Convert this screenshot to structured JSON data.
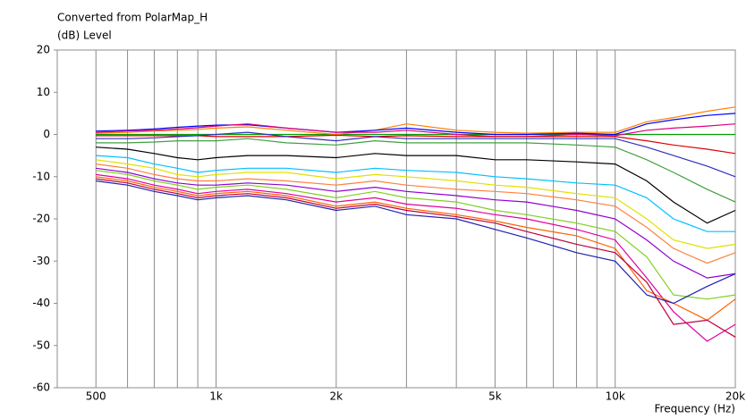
{
  "chart_data": {
    "type": "line",
    "title": "Converted from PolarMap_H",
    "y_label": "(dB)  Level",
    "x_label": "Frequency  (Hz)",
    "log_x": true,
    "grid_x": true,
    "xlim": [
      400,
      20000
    ],
    "ylim": [
      -60,
      20
    ],
    "yticks": [
      20,
      10,
      0,
      -10,
      -20,
      -30,
      -40,
      -50,
      -60
    ],
    "xticks": [
      500,
      {
        "value": 1000,
        "label": "1k"
      },
      {
        "value": 2000,
        "label": "2k"
      },
      {
        "value": 5000,
        "label": "5k"
      },
      {
        "value": 10000,
        "label": "10k"
      },
      {
        "value": 20000,
        "label": "20k"
      }
    ],
    "xminorticks": [
      600,
      700,
      800,
      900,
      3000,
      4000,
      6000,
      7000,
      8000,
      9000
    ],
    "x": [
      500,
      600,
      700,
      800,
      900,
      1000,
      1200,
      1500,
      2000,
      2500,
      3000,
      4000,
      5000,
      6000,
      8000,
      10000,
      12000,
      14000,
      17000,
      20000
    ],
    "series": [
      {
        "color": "#00a000",
        "values": [
          0,
          0,
          0,
          0,
          0,
          0,
          0,
          0,
          0,
          0,
          0,
          0,
          0,
          0,
          0,
          0,
          0,
          0,
          0,
          0
        ]
      },
      {
        "color": "#ff8000",
        "values": [
          0.3,
          0.5,
          0.8,
          1,
          1.2,
          1.5,
          1.8,
          1,
          0,
          1,
          2.5,
          1,
          0.5,
          0.3,
          0.5,
          0.5,
          3,
          4,
          5.5,
          6.5
        ]
      },
      {
        "color": "#0000ff",
        "values": [
          0.8,
          1,
          1.3,
          1.7,
          2,
          2.2,
          2.3,
          1.5,
          0.5,
          1,
          1.5,
          0.5,
          0,
          0,
          0.3,
          0,
          2.5,
          3.5,
          4.5,
          5
        ]
      },
      {
        "color": "#e0007f",
        "values": [
          0.5,
          0.8,
          1,
          1.3,
          1.6,
          2,
          2.5,
          1.5,
          0.5,
          0.5,
          1,
          0,
          -0.5,
          -0.5,
          0,
          -0.3,
          1,
          1.5,
          2,
          2.5
        ]
      },
      {
        "color": "#e00000",
        "values": [
          -0.3,
          -0.3,
          -0.3,
          -0.3,
          -0.3,
          -0.5,
          -0.5,
          -0.5,
          -0.2,
          -0.5,
          -0.3,
          -0.5,
          -0.5,
          -0.5,
          -0.5,
          -0.5,
          -1.5,
          -2.5,
          -3.5,
          -4.5
        ]
      },
      {
        "color": "#3030c0",
        "values": [
          -1,
          -1,
          -0.8,
          -0.5,
          -0.3,
          0,
          0.5,
          -0.5,
          -1.5,
          -0.5,
          -1,
          -1,
          -1,
          -1,
          -1,
          -1,
          -3,
          -5,
          -7.5,
          -10
        ]
      },
      {
        "color": "#40a040",
        "values": [
          -2,
          -2,
          -1.8,
          -1.5,
          -1.5,
          -1.5,
          -1,
          -2,
          -2.5,
          -1.5,
          -2,
          -2,
          -2,
          -2,
          -2.5,
          -3,
          -6,
          -9,
          -13,
          -16
        ]
      },
      {
        "color": "#000000",
        "values": [
          -3,
          -3.5,
          -4.5,
          -5.5,
          -6,
          -5.5,
          -5,
          -5,
          -5.5,
          -4.5,
          -5,
          -5,
          -6,
          -6,
          -6.5,
          -7,
          -11,
          -16,
          -21,
          -18
        ]
      },
      {
        "color": "#00c0ff",
        "values": [
          -5,
          -5.5,
          -7,
          -8,
          -9,
          -8.5,
          -8,
          -8,
          -9,
          -8,
          -8.5,
          -9,
          -10,
          -10.5,
          -11.5,
          -12,
          -15,
          -20,
          -23,
          -23
        ]
      },
      {
        "color": "#e0e000",
        "values": [
          -6,
          -7,
          -8,
          -9.5,
          -10,
          -9.5,
          -9,
          -9,
          -10.5,
          -9.5,
          -10,
          -11,
          -12,
          -12.5,
          -14,
          -15,
          -20,
          -25,
          -27,
          -26
        ]
      },
      {
        "color": "#ff8040",
        "values": [
          -7,
          -8,
          -9.5,
          -10.5,
          -11,
          -11,
          -10.5,
          -11,
          -12,
          -11,
          -12,
          -13,
          -13.5,
          -14,
          -15.5,
          -17,
          -22,
          -27,
          -30.5,
          -28
        ]
      },
      {
        "color": "#9000d0",
        "values": [
          -8,
          -9,
          -10.5,
          -11.5,
          -12,
          -12,
          -11.5,
          -12,
          -13.5,
          -12.5,
          -13.5,
          -14.5,
          -15.5,
          -16,
          -18,
          -20,
          -25,
          -30,
          -34,
          -33
        ]
      },
      {
        "color": "#80d020",
        "values": [
          -8.5,
          -9.5,
          -11,
          -12,
          -13,
          -12.5,
          -12,
          -13,
          -15,
          -13.5,
          -15,
          -16,
          -18,
          -19,
          -21,
          -23,
          -29,
          -38,
          -39,
          -38
        ]
      },
      {
        "color": "#e000a0",
        "values": [
          -9.5,
          -10.5,
          -12,
          -13,
          -14,
          -13.5,
          -13,
          -14,
          -16,
          -15,
          -16.5,
          -17.5,
          -19,
          -20,
          -22.5,
          -25,
          -34,
          -42,
          -49,
          -45
        ]
      },
      {
        "color": "#ff6000",
        "values": [
          -10,
          -11,
          -12.5,
          -13.5,
          -14.5,
          -14,
          -13.5,
          -14.5,
          -17,
          -16,
          -17.5,
          -19,
          -20.5,
          -22,
          -24,
          -27,
          -37,
          -40,
          -44,
          -39
        ]
      },
      {
        "color": "#2020b0",
        "values": [
          -11,
          -12,
          -13.5,
          -14.5,
          -15.5,
          -15,
          -14.5,
          -15.5,
          -18,
          -17,
          -19,
          -20,
          -22.5,
          -24.5,
          -28,
          -30,
          -38,
          -40,
          -36,
          -33
        ]
      },
      {
        "color": "#c0003c",
        "values": [
          -10.5,
          -11.5,
          -13,
          -14,
          -15,
          -14.5,
          -14,
          -15,
          -17.5,
          -16.5,
          -18,
          -19.5,
          -21,
          -23,
          -26,
          -28,
          -35,
          -45,
          -44,
          -48
        ]
      }
    ]
  }
}
